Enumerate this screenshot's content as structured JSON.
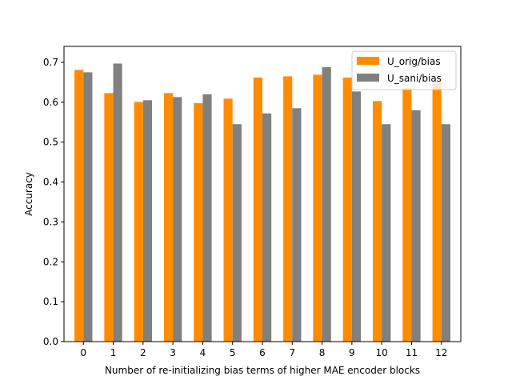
{
  "chart_data": {
    "type": "bar",
    "title": "",
    "xlabel": "Number of re-initializing bias terms of higher MAE encoder blocks",
    "ylabel": "Accuracy",
    "categories": [
      "0",
      "1",
      "2",
      "3",
      "4",
      "5",
      "6",
      "7",
      "8",
      "9",
      "10",
      "11",
      "12"
    ],
    "ylim": [
      0,
      0.74
    ],
    "yticks": [
      0.0,
      0.1,
      0.2,
      0.3,
      0.4,
      0.5,
      0.6,
      0.7
    ],
    "ytick_labels": [
      "0.0",
      "0.1",
      "0.2",
      "0.3",
      "0.4",
      "0.5",
      "0.6",
      "0.7"
    ],
    "grid": false,
    "legend_position": "top-right",
    "series": [
      {
        "name": "U_orig/bias",
        "color": "#ff8c00",
        "values": [
          0.681,
          0.623,
          0.601,
          0.623,
          0.598,
          0.609,
          0.662,
          0.665,
          0.669,
          0.662,
          0.603,
          0.635,
          0.65
        ]
      },
      {
        "name": "U_sani/bias",
        "color": "#808080",
        "values": [
          0.675,
          0.697,
          0.605,
          0.613,
          0.62,
          0.545,
          0.572,
          0.585,
          0.688,
          0.627,
          0.545,
          0.58,
          0.545
        ]
      }
    ]
  }
}
